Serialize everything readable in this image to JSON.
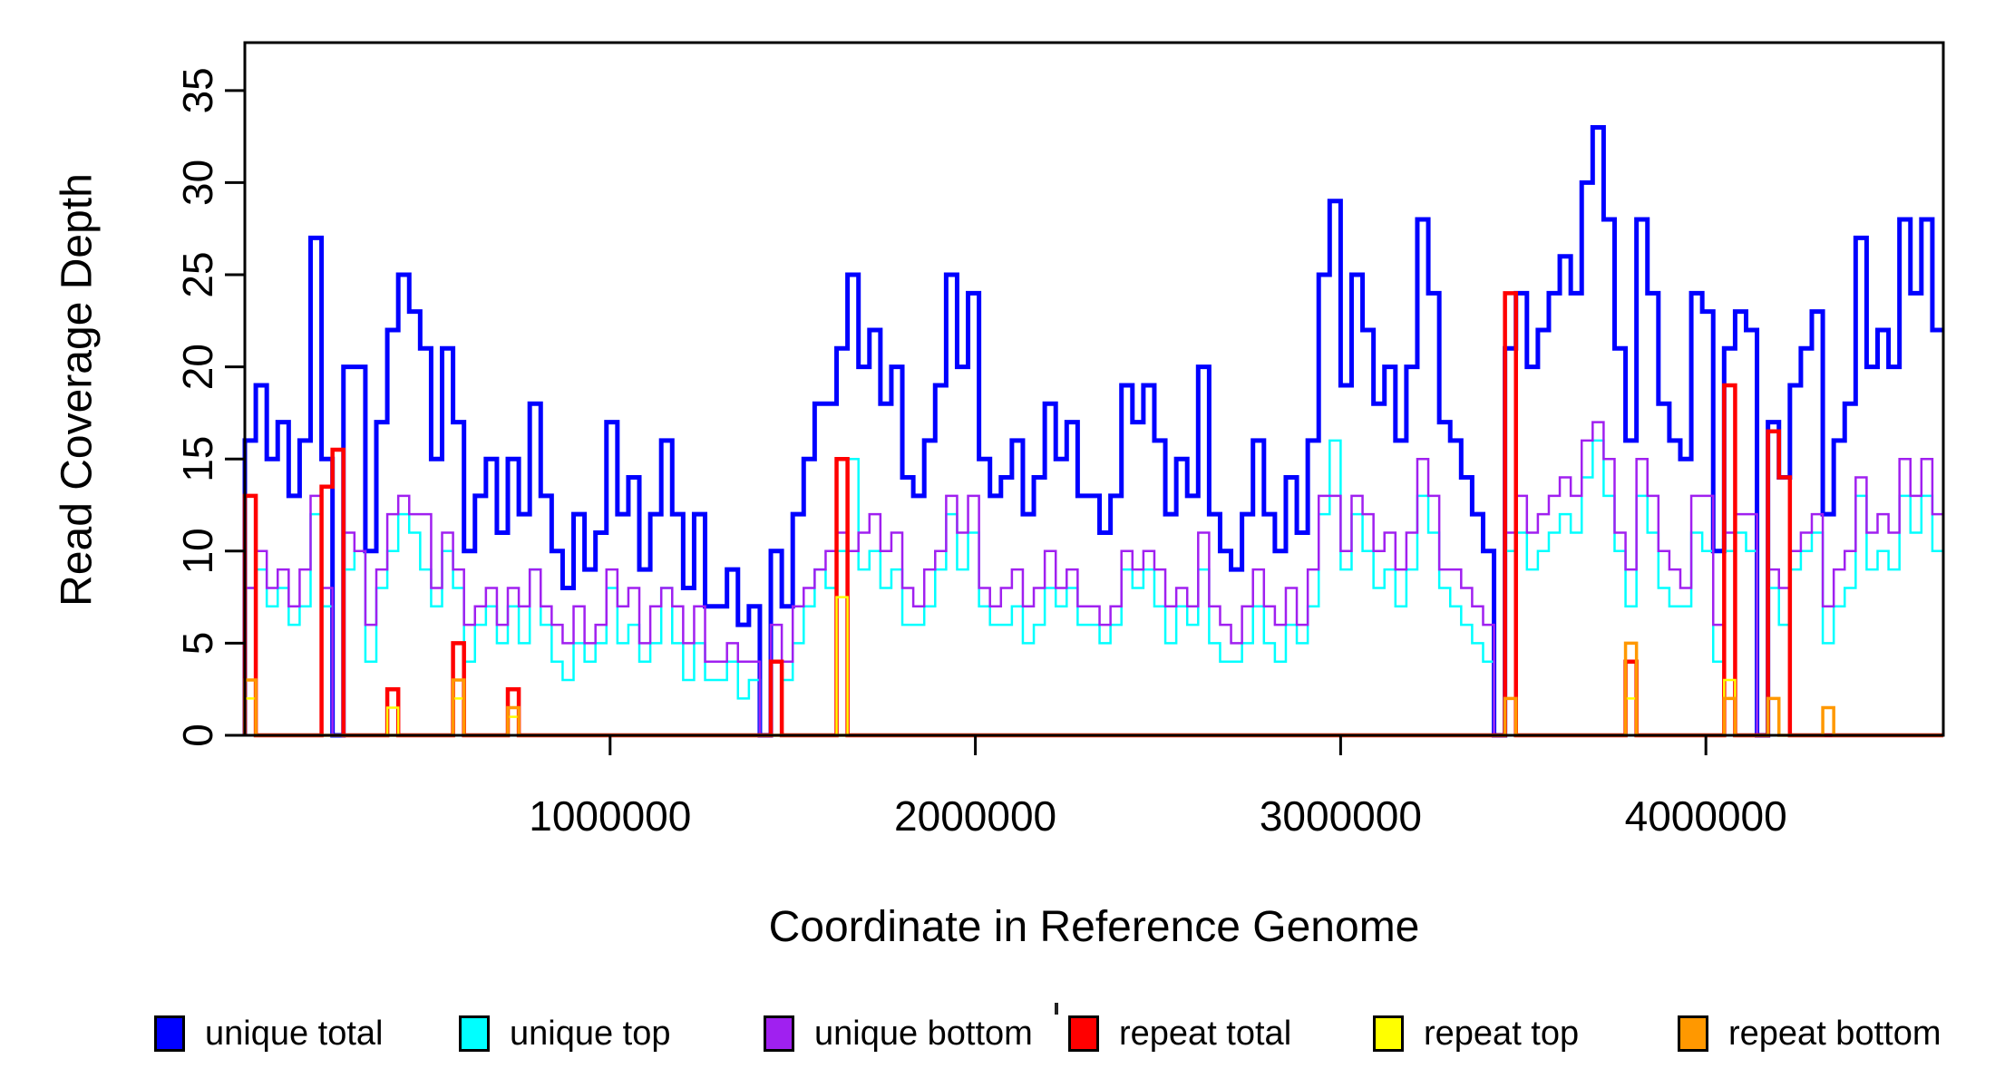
{
  "figure": {
    "background": "#FFFFFF",
    "axis_color": "#000000"
  },
  "chart_data": {
    "type": "line",
    "subtype": "step",
    "title": "",
    "xlabel": "Coordinate in Reference Genome",
    "ylabel": "Read Coverage Depth",
    "xlim": [
      0,
      4650000
    ],
    "ylim": [
      0,
      37.6
    ],
    "grid": false,
    "legend_position": "bottom",
    "x_ticks": [
      {
        "value": 1000000,
        "label": "1000000"
      },
      {
        "value": 2000000,
        "label": "2000000"
      },
      {
        "value": 3000000,
        "label": "3000000"
      },
      {
        "value": 4000000,
        "label": "4000000"
      }
    ],
    "y_ticks": [
      {
        "value": 0,
        "label": "0"
      },
      {
        "value": 5,
        "label": "5"
      },
      {
        "value": 10,
        "label": "10"
      },
      {
        "value": 15,
        "label": "15"
      },
      {
        "value": 20,
        "label": "20"
      },
      {
        "value": 25,
        "label": "25"
      },
      {
        "value": 30,
        "label": "30"
      },
      {
        "value": 35,
        "label": "35"
      }
    ],
    "x_bin_size": 30000,
    "series": [
      {
        "id": "unique_total",
        "label": "unique total",
        "color": "#0000FF",
        "line_width": 5,
        "values": [
          16,
          19,
          15,
          17,
          13,
          16,
          27,
          15,
          0,
          20,
          20,
          10,
          17,
          22,
          25,
          23,
          21,
          15,
          21,
          17,
          10,
          13,
          15,
          11,
          15,
          12,
          18,
          13,
          10,
          8,
          12,
          9,
          11,
          17,
          12,
          14,
          9,
          12,
          16,
          12,
          8,
          12,
          7,
          7,
          9,
          6,
          7,
          0,
          10,
          7,
          12,
          15,
          18,
          18,
          21,
          25,
          20,
          22,
          18,
          20,
          14,
          13,
          16,
          19,
          25,
          20,
          24,
          15,
          13,
          14,
          16,
          12,
          14,
          18,
          15,
          17,
          13,
          13,
          11,
          13,
          19,
          17,
          19,
          16,
          12,
          15,
          13,
          20,
          12,
          10,
          9,
          12,
          16,
          12,
          10,
          14,
          11,
          16,
          25,
          29,
          19,
          25,
          22,
          18,
          20,
          16,
          20,
          28,
          24,
          17,
          16,
          14,
          12,
          10,
          0,
          21,
          24,
          20,
          22,
          24,
          26,
          24,
          30,
          33,
          28,
          21,
          16,
          28,
          24,
          18,
          16,
          15,
          24,
          23,
          10,
          21,
          23,
          22,
          0,
          17,
          14,
          19,
          21,
          23,
          12,
          16,
          18,
          27,
          20,
          22,
          20,
          28,
          24,
          28,
          22
        ]
      },
      {
        "id": "unique_top",
        "label": "unique top",
        "color": "#00FFFF",
        "line_width": 2.5,
        "values": [
          8,
          9,
          7,
          8,
          6,
          7,
          12,
          7,
          0,
          9,
          10,
          4,
          8,
          10,
          12,
          11,
          9,
          7,
          10,
          8,
          4,
          6,
          7,
          5,
          7,
          5,
          9,
          6,
          4,
          3,
          5,
          4,
          5,
          8,
          5,
          6,
          4,
          5,
          8,
          5,
          3,
          5,
          3,
          3,
          4,
          2,
          3,
          0,
          4,
          3,
          5,
          7,
          9,
          8,
          10,
          15,
          9,
          10,
          8,
          9,
          6,
          6,
          7,
          9,
          12,
          9,
          11,
          7,
          6,
          6,
          7,
          5,
          6,
          8,
          7,
          8,
          6,
          6,
          5,
          6,
          9,
          8,
          9,
          7,
          5,
          7,
          6,
          9,
          5,
          4,
          4,
          5,
          7,
          5,
          4,
          6,
          5,
          7,
          12,
          16,
          9,
          12,
          10,
          8,
          9,
          7,
          9,
          13,
          11,
          8,
          7,
          6,
          5,
          4,
          0,
          10,
          11,
          9,
          10,
          11,
          12,
          11,
          14,
          16,
          13,
          10,
          7,
          13,
          11,
          8,
          7,
          7,
          11,
          10,
          4,
          10,
          11,
          10,
          0,
          8,
          6,
          9,
          10,
          11,
          5,
          7,
          8,
          13,
          9,
          10,
          9,
          13,
          11,
          13,
          10
        ]
      },
      {
        "id": "unique_bottom",
        "label": "unique bottom",
        "color": "#A020F0",
        "line_width": 2.5,
        "values": [
          8,
          10,
          8,
          9,
          7,
          9,
          13,
          8,
          0,
          11,
          10,
          6,
          9,
          12,
          13,
          12,
          12,
          8,
          11,
          9,
          6,
          7,
          8,
          6,
          8,
          7,
          9,
          7,
          6,
          5,
          7,
          5,
          6,
          9,
          7,
          8,
          5,
          7,
          8,
          7,
          5,
          7,
          4,
          4,
          5,
          4,
          4,
          0,
          6,
          4,
          7,
          8,
          9,
          10,
          11,
          10,
          11,
          12,
          10,
          11,
          8,
          7,
          9,
          10,
          13,
          11,
          13,
          8,
          7,
          8,
          9,
          7,
          8,
          10,
          8,
          9,
          7,
          7,
          6,
          7,
          10,
          9,
          10,
          9,
          7,
          8,
          7,
          11,
          7,
          6,
          5,
          7,
          9,
          7,
          6,
          8,
          6,
          9,
          13,
          13,
          10,
          13,
          12,
          10,
          11,
          9,
          11,
          15,
          13,
          9,
          9,
          8,
          7,
          6,
          0,
          11,
          13,
          11,
          12,
          13,
          14,
          13,
          16,
          17,
          15,
          11,
          9,
          15,
          13,
          10,
          9,
          8,
          13,
          13,
          6,
          11,
          12,
          12,
          0,
          9,
          8,
          10,
          11,
          12,
          7,
          9,
          10,
          14,
          11,
          12,
          11,
          15,
          13,
          15,
          12
        ]
      },
      {
        "id": "repeat_total",
        "label": "repeat total",
        "color": "#FF0000",
        "line_width": 4.5,
        "base": 0,
        "spikes": [
          {
            "x": 5000,
            "value": 13
          },
          {
            "x": 210000,
            "value": 13.5
          },
          {
            "x": 245000,
            "value": 15.5
          },
          {
            "x": 390000,
            "value": 2.5
          },
          {
            "x": 570000,
            "value": 5
          },
          {
            "x": 725000,
            "value": 2.5
          },
          {
            "x": 1440000,
            "value": 4
          },
          {
            "x": 1630000,
            "value": 15
          },
          {
            "x": 3450000,
            "value": 24
          },
          {
            "x": 3780000,
            "value": 4
          },
          {
            "x": 4040000,
            "value": 19
          },
          {
            "x": 4170000,
            "value": 16.5
          },
          {
            "x": 4200000,
            "value": 14
          }
        ]
      },
      {
        "id": "repeat_top",
        "label": "repeat top",
        "color": "#FFFF00",
        "line_width": 2.5,
        "base": 0,
        "spikes": [
          {
            "x": 5000,
            "value": 2
          },
          {
            "x": 390000,
            "value": 1.5
          },
          {
            "x": 570000,
            "value": 2
          },
          {
            "x": 725000,
            "value": 1
          },
          {
            "x": 1630000,
            "value": 7.5
          },
          {
            "x": 3450000,
            "value": 2
          },
          {
            "x": 3780000,
            "value": 2
          },
          {
            "x": 4040000,
            "value": 3
          },
          {
            "x": 4170000,
            "value": 2
          }
        ]
      },
      {
        "id": "repeat_bottom",
        "label": "repeat bottom",
        "color": "#FF9800",
        "line_width": 3.5,
        "base": 0,
        "spikes": [
          {
            "x": 5000,
            "value": 3
          },
          {
            "x": 570000,
            "value": 3
          },
          {
            "x": 725000,
            "value": 1.5
          },
          {
            "x": 3450000,
            "value": 2
          },
          {
            "x": 3780000,
            "value": 5
          },
          {
            "x": 4040000,
            "value": 2
          },
          {
            "x": 4170000,
            "value": 2
          },
          {
            "x": 4310000,
            "value": 1.5
          }
        ]
      }
    ],
    "stray_mark": {
      "x": 1163,
      "y": 1106
    }
  }
}
